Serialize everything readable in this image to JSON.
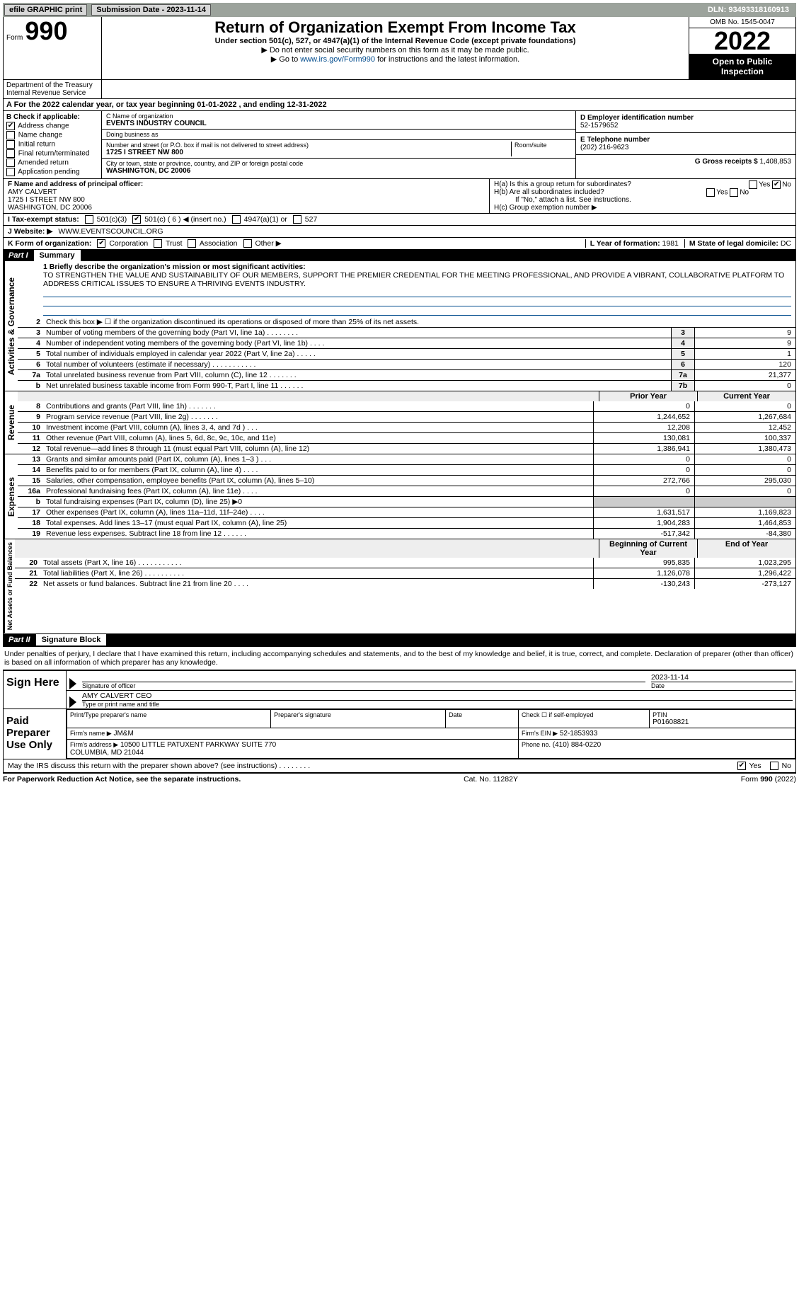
{
  "topbar": {
    "efile": "efile GRAPHIC print",
    "submission_label": "Submission Date - 2023-11-14",
    "dln": "DLN: 93493318160913"
  },
  "header": {
    "form_word": "Form",
    "form_num": "990",
    "dept": "Department of the Treasury Internal Revenue Service",
    "title": "Return of Organization Exempt From Income Tax",
    "sub1": "Under section 501(c), 527, or 4947(a)(1) of the Internal Revenue Code (except private foundations)",
    "sub2": "▶ Do not enter social security numbers on this form as it may be made public.",
    "sub3_pre": "▶ Go to ",
    "sub3_link": "www.irs.gov/Form990",
    "sub3_post": " for instructions and the latest information.",
    "omb": "OMB No. 1545-0047",
    "year": "2022",
    "open": "Open to Public Inspection"
  },
  "period": {
    "line": "A For the 2022 calendar year, or tax year beginning 01-01-2022    , and ending 12-31-2022"
  },
  "checkbox_b": {
    "title": "B Check if applicable:",
    "items": [
      "Address change",
      "Name change",
      "Initial return",
      "Final return/terminated",
      "Amended return",
      "Application pending"
    ],
    "checked_index": 0
  },
  "entity": {
    "name_label": "C Name of organization",
    "name": "EVENTS INDUSTRY COUNCIL",
    "dba_label": "Doing business as",
    "dba": "",
    "street_label": "Number and street (or P.O. box if mail is not delivered to street address)",
    "room_label": "Room/suite",
    "street": "1725 I STREET NW 800",
    "city_label": "City or town, state or province, country, and ZIP or foreign postal code",
    "city": "WASHINGTON, DC  20006"
  },
  "right": {
    "ein_label": "D Employer identification number",
    "ein": "52-1579652",
    "phone_label": "E Telephone number",
    "phone": "(202) 216-9623",
    "gross_label": "G Gross receipts $",
    "gross": "1,408,853"
  },
  "principal": {
    "label": "F Name and address of principal officer:",
    "name": "AMY CALVERT",
    "addr1": "1725 I STREET NW 800",
    "addr2": "WASHINGTON, DC  20006",
    "ha": "H(a)  Is this a group return for subordinates?",
    "ha_ans": "No",
    "hb": "H(b)  Are all subordinates included?",
    "hb_note": "If \"No,\" attach a list. See instructions.",
    "hc": "H(c)  Group exemption number ▶"
  },
  "tax_status": {
    "label": "I   Tax-exempt status:",
    "opts": [
      "501(c)(3)",
      "501(c) ( 6 ) ◀ (insert no.)",
      "4947(a)(1) or",
      "527"
    ],
    "checked_index": 1
  },
  "website": {
    "label": "J   Website: ▶",
    "value": "WWW.EVENTSCOUNCIL.ORG"
  },
  "formorg": {
    "label": "K Form of organization:",
    "opts": [
      "Corporation",
      "Trust",
      "Association",
      "Other ▶"
    ],
    "checked_index": 0,
    "year_label": "L Year of formation:",
    "year": "1981",
    "state_label": "M State of legal domicile:",
    "state": "DC"
  },
  "part1": {
    "part": "Part I",
    "title": "Summary"
  },
  "mission": {
    "q": "1  Briefly describe the organization's mission or most significant activities:",
    "text": "TO STRENGTHEN THE VALUE AND SUSTAINABILITY OF OUR MEMBERS, SUPPORT THE PREMIER CREDENTIAL FOR THE MEETING PROFESSIONAL, AND PROVIDE A VIBRANT, COLLABORATIVE PLATFORM TO ADDRESS CRITICAL ISSUES TO ENSURE A THRIVING EVENTS INDUSTRY."
  },
  "governance_label": "Activities & Governance",
  "gov_lines": [
    {
      "n": "2",
      "t": "Check this box ▶ ☐ if the organization discontinued its operations or disposed of more than 25% of its net assets.",
      "box": "",
      "v": ""
    },
    {
      "n": "3",
      "t": "Number of voting members of the governing body (Part VI, line 1a)  .    .    .    .    .    .    .    .",
      "box": "3",
      "v": "9"
    },
    {
      "n": "4",
      "t": "Number of independent voting members of the governing body (Part VI, line 1b)  .    .    .    .",
      "box": "4",
      "v": "9"
    },
    {
      "n": "5",
      "t": "Total number of individuals employed in calendar year 2022 (Part V, line 2a)  .    .    .    .    .",
      "box": "5",
      "v": "1"
    },
    {
      "n": "6",
      "t": "Total number of volunteers (estimate if necessary)  .    .    .    .    .    .    .    .    .    .    .",
      "box": "6",
      "v": "120"
    },
    {
      "n": "7a",
      "t": "Total unrelated business revenue from Part VIII, column (C), line 12  .    .    .    .    .    .    .",
      "box": "7a",
      "v": "21,377"
    },
    {
      "n": "b",
      "t": "Net unrelated business taxable income from Form 990-T, Part I, line 11  .    .    .    .    .    .",
      "box": "7b",
      "v": "0"
    }
  ],
  "two_col_hdr": {
    "prior": "Prior Year",
    "current": "Current Year"
  },
  "revenue_label": "Revenue",
  "revenue_lines": [
    {
      "n": "8",
      "t": "Contributions and grants (Part VIII, line 1h)  .    .    .    .    .    .    .",
      "p": "0",
      "c": "0"
    },
    {
      "n": "9",
      "t": "Program service revenue (Part VIII, line 2g)  .    .    .    .    .    .    .",
      "p": "1,244,652",
      "c": "1,267,684"
    },
    {
      "n": "10",
      "t": "Investment income (Part VIII, column (A), lines 3, 4, and 7d )  .    .    .",
      "p": "12,208",
      "c": "12,452"
    },
    {
      "n": "11",
      "t": "Other revenue (Part VIII, column (A), lines 5, 6d, 8c, 9c, 10c, and 11e)",
      "p": "130,081",
      "c": "100,337"
    },
    {
      "n": "12",
      "t": "Total revenue—add lines 8 through 11 (must equal Part VIII, column (A), line 12)",
      "p": "1,386,941",
      "c": "1,380,473"
    }
  ],
  "expenses_label": "Expenses",
  "expense_lines": [
    {
      "n": "13",
      "t": "Grants and similar amounts paid (Part IX, column (A), lines 1–3 )  .    .    .",
      "p": "0",
      "c": "0"
    },
    {
      "n": "14",
      "t": "Benefits paid to or for members (Part IX, column (A), line 4)  .    .    .    .",
      "p": "0",
      "c": "0"
    },
    {
      "n": "15",
      "t": "Salaries, other compensation, employee benefits (Part IX, column (A), lines 5–10)",
      "p": "272,766",
      "c": "295,030"
    },
    {
      "n": "16a",
      "t": "Professional fundraising fees (Part IX, column (A), line 11e)  .    .    .    .",
      "p": "0",
      "c": "0"
    },
    {
      "n": "b",
      "t": "Total fundraising expenses (Part IX, column (D), line 25) ▶0",
      "p": "",
      "c": ""
    },
    {
      "n": "17",
      "t": "Other expenses (Part IX, column (A), lines 11a–11d, 11f–24e)  .    .    .    .",
      "p": "1,631,517",
      "c": "1,169,823"
    },
    {
      "n": "18",
      "t": "Total expenses. Add lines 13–17 (must equal Part IX, column (A), line 25)",
      "p": "1,904,283",
      "c": "1,464,853"
    },
    {
      "n": "19",
      "t": "Revenue less expenses. Subtract line 18 from line 12  .    .    .    .    .    .",
      "p": "-517,342",
      "c": "-84,380"
    }
  ],
  "net_hdr": {
    "prior": "Beginning of Current Year",
    "current": "End of Year"
  },
  "net_label": "Net Assets or Fund Balances",
  "net_lines": [
    {
      "n": "20",
      "t": "Total assets (Part X, line 16)  .    .    .    .    .    .    .    .    .    .    .",
      "p": "995,835",
      "c": "1,023,295"
    },
    {
      "n": "21",
      "t": "Total liabilities (Part X, line 26)  .    .    .    .    .    .    .    .    .    .",
      "p": "1,126,078",
      "c": "1,296,422"
    },
    {
      "n": "22",
      "t": "Net assets or fund balances. Subtract line 21 from line 20  .    .    .    .",
      "p": "-130,243",
      "c": "-273,127"
    }
  ],
  "part2": {
    "part": "Part II",
    "title": "Signature Block"
  },
  "declaration": "Under penalties of perjury, I declare that I have examined this return, including accompanying schedules and statements, and to the best of my knowledge and belief, it is true, correct, and complete. Declaration of preparer (other than officer) is based on all information of which preparer has any knowledge.",
  "sign": {
    "label": "Sign Here",
    "sig_of_officer": "Signature of officer",
    "date": "2023-11-14",
    "date_label": "Date",
    "name": "AMY CALVERT CEO",
    "name_label": "Type or print name and title"
  },
  "paid": {
    "label": "Paid Preparer Use Only",
    "h1": "Print/Type preparer's name",
    "h2": "Preparer's signature",
    "h3": "Date",
    "h4": "Check ☐ if self-employed",
    "h5_label": "PTIN",
    "h5": "P01608821",
    "firm_label": "Firm's name    ▶",
    "firm": "JM&M",
    "ein_label": "Firm's EIN ▶",
    "ein": "52-1853933",
    "addr_label": "Firm's address ▶",
    "addr": "10500 LITTLE PATUXENT PARKWAY SUITE 770\nCOLUMBIA, MD  21044",
    "phone_label": "Phone no.",
    "phone": "(410) 884-0220"
  },
  "discuss": {
    "q": "May the IRS discuss this return with the preparer shown above? (see instructions)  .    .    .    .    .    .    .    .",
    "yes": "Yes",
    "no": "No"
  },
  "footer": {
    "left": "For Paperwork Reduction Act Notice, see the separate instructions.",
    "mid": "Cat. No. 11282Y",
    "right": "Form 990 (2022)"
  }
}
